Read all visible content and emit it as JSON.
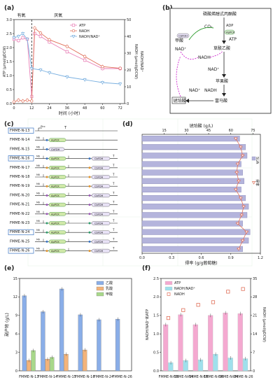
{
  "panels": {
    "a": "(a)",
    "b": "(b)",
    "c": "(c)",
    "d": "(d)",
    "e": "(e)",
    "f": "(f)"
  },
  "chart_data": [
    {
      "panel": "a",
      "type": "line",
      "xlabel": "时间 (小时)",
      "ylabel_left": "ATP (μmol/gDCW)",
      "ylabel_right": "NADH (μmol/gDCW)",
      "ylabel_right2": "NADH/NAD⁺",
      "xticks": [
        0,
        12,
        24,
        36,
        48,
        60,
        72
      ],
      "ylim_left": [
        0,
        3.0
      ],
      "yticks_left": [
        "0.0",
        "0.5",
        "1.0",
        "1.5",
        "2.0",
        "2.5",
        "3.0"
      ],
      "ylim_right": [
        0,
        50
      ],
      "yticks_right": [
        "0",
        "10",
        "20",
        "30",
        "40",
        "50"
      ],
      "annotations": {
        "aerobic": "有氧",
        "anaerobic": "厌氧"
      },
      "divider_x": 12,
      "legend": [
        "ATP",
        "NADH",
        "NADH/NAD⁺"
      ],
      "colors": {
        "ATP": "#e87fb6",
        "NADH": "#e0705a",
        "ratio": "#7ab0e0"
      },
      "series": [
        {
          "name": "ATP",
          "axis": "left",
          "x": [
            0,
            3,
            6,
            9,
            12,
            14,
            18,
            24,
            36,
            48,
            60,
            72
          ],
          "y": [
            2.3,
            2.25,
            2.35,
            2.3,
            0.25,
            2.5,
            2.4,
            2.2,
            1.85,
            1.55,
            1.25,
            1.25
          ]
        },
        {
          "name": "NADH",
          "axis": "right",
          "x": [
            0,
            3,
            6,
            9,
            12,
            14,
            18,
            24,
            36,
            48,
            60,
            72
          ],
          "y": [
            1,
            2,
            1.5,
            2,
            1.5,
            45,
            42,
            38,
            34,
            28,
            22,
            21
          ]
        },
        {
          "name": "NADH/NAD⁺",
          "axis": "left",
          "x": [
            0,
            3,
            6,
            9,
            12,
            18,
            24,
            36,
            48,
            60,
            72
          ],
          "y": [
            2.35,
            2.4,
            2.5,
            2.3,
            1.25,
            1.2,
            1.1,
            0.95,
            0.85,
            0.75,
            0.7
          ]
        }
      ]
    },
    {
      "panel": "d",
      "type": "bar",
      "orientation": "horizontal",
      "xlabel_top": "琥珀酸 (g/L)",
      "xticks_top": [
        "15",
        "30",
        "45",
        "60",
        "75"
      ],
      "xlabel_bottom": "得率 (g/g葡萄糖)",
      "xticks_bottom": [
        "0.0",
        "0.3",
        "0.6",
        "0.9",
        "1.2"
      ],
      "legend": [
        "SUA",
        "Yield"
      ],
      "legend_labels": [
        "SUA",
        "得率"
      ],
      "categories": [
        "FMME-N-13",
        "FMME-N-14",
        "FMME-N-15",
        "FMME-N-16",
        "FMME-N-17",
        "FMME-N-18",
        "FMME-N-19",
        "FMME-N-20",
        "FMME-N-21",
        "FMME-N-22",
        "FMME-N-23",
        "FMME-N-24",
        "FMME-N-25",
        "FMME-N-26"
      ],
      "bar_values_gL": [
        66,
        70,
        71,
        67,
        68,
        69,
        67,
        70,
        72,
        71,
        68,
        73,
        72,
        68
      ],
      "yield_values": [
        0.95,
        1.0,
        1.02,
        0.97,
        0.96,
        0.98,
        0.95,
        1.0,
        1.03,
        1.01,
        0.97,
        1.06,
        1.02,
        0.98
      ]
    },
    {
      "panel": "e",
      "type": "bar",
      "ylabel": "副产物 (g/L)",
      "ylim": [
        0,
        15
      ],
      "yticks": [
        "0",
        "3",
        "6",
        "9",
        "12",
        "15"
      ],
      "categories": [
        "FMME-N-13",
        "FMME-N-14",
        "FMME-N-15",
        "FMME-N-16",
        "FMME-N-24",
        "FMME-N-26"
      ],
      "series": [
        {
          "name": "乙酸",
          "color": "#8aaee8",
          "values": [
            12.2,
            9.6,
            13.3,
            9.1,
            8.3,
            8.4
          ]
        },
        {
          "name": "乳酸",
          "color": "#f3b37a",
          "values": [
            1.7,
            1.9,
            2.7,
            3.4,
            0.0,
            0.0
          ]
        },
        {
          "name": "甲酸",
          "color": "#a8d88a",
          "values": [
            3.3,
            2.2,
            0.0,
            0.0,
            0.0,
            0.0
          ]
        }
      ]
    },
    {
      "panel": "f",
      "type": "bar",
      "ylabel_left": "NADH/NAD⁺和ATP",
      "ylabel_right": "NADH (μmol/gDCW)",
      "ylim_left": [
        0,
        2.5
      ],
      "yticks_left": [
        "0.0",
        "0.5",
        "1.0",
        "1.5",
        "2.0",
        "2.5"
      ],
      "ylim_right": [
        0,
        35
      ],
      "yticks_right": [
        "0",
        "7",
        "14",
        "21",
        "28",
        "35"
      ],
      "categories": [
        "FMME-N-13",
        "FMME-N-14",
        "FMME-N-15",
        "FMME-N-16",
        "FMME-N-24",
        "FMME-N-26"
      ],
      "legend": [
        "ATP",
        "NADH/NAD⁺",
        "NADH"
      ],
      "series": [
        {
          "name": "ATP",
          "color": "#f4a9d0",
          "values": [
            1.25,
            1.52,
            1.25,
            1.5,
            1.57,
            1.55
          ]
        },
        {
          "name": "NADH/NAD⁺",
          "color": "#9fe0ec",
          "values": [
            0.22,
            0.28,
            0.3,
            0.45,
            0.35,
            0.33
          ]
        },
        {
          "name": "NADH",
          "color": "#e0705a",
          "axis": "right",
          "values": [
            20,
            23,
            25,
            26,
            30,
            31
          ]
        }
      ]
    }
  ],
  "pathway": {
    "pep": "磷酸烯醇式丙酮酸",
    "co2": "CO₂",
    "adp": "ADP",
    "atp": "ATP",
    "appck": "ApPCK",
    "oaa": "草酰乙酸",
    "formate": "甲酸",
    "cbfdh": "CbFDH",
    "nadh": "NADH",
    "nad": "NAD⁺",
    "malate": "苹果酸",
    "fumarate": "富马酸",
    "succinate": "琥珀酸"
  },
  "constructs": {
    "strains": [
      "FMME-N-13",
      "FMME-N-14",
      "FMME-N-15",
      "FMME-N-16",
      "FMME-N-17",
      "FMME-N-18",
      "FMME-N-19",
      "FMME-N-20",
      "FMME-N-21",
      "FMME-N-22",
      "FMME-N-23",
      "FMME-N-24",
      "FMME-N-25",
      "FMME-N-26"
    ],
    "highlight": [
      "FMME-N-13",
      "FMME-N-16",
      "FMME-N-24",
      "FMME-N-26"
    ],
    "ptrc": "Ptrc",
    "term": "T",
    "mm": "M6",
    "appck": "ApPCK",
    "cbfdh": "CbFDH",
    "dot_colors": [
      "#3a75c4",
      "#3a75c4",
      "#3a75c4",
      "#3a75c4",
      "#e09530",
      "#e09530",
      "#e09530",
      "#9b59b6",
      "#9b59b6",
      "#9b59b6",
      "#2e9c6b",
      "#2e9c6b",
      "#3a75c4",
      "#e09530"
    ]
  }
}
